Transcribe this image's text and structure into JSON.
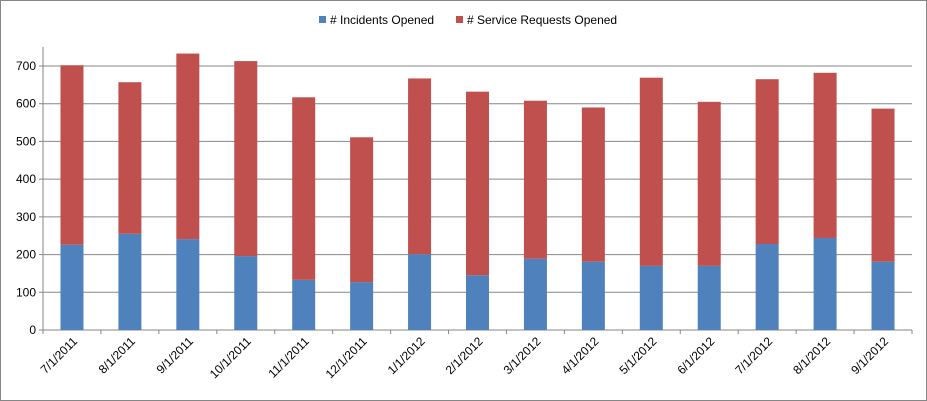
{
  "chart_data": {
    "type": "bar",
    "stacked": true,
    "categories": [
      "7/1/2011",
      "8/1/2011",
      "9/1/2011",
      "10/1/2011",
      "11/1/2011",
      "12/1/2011",
      "1/1/2012",
      "2/1/2012",
      "3/1/2012",
      "4/1/2012",
      "5/1/2012",
      "6/1/2012",
      "7/1/2012",
      "8/1/2012",
      "9/1/2012"
    ],
    "series": [
      {
        "name": "# Incidents Opened",
        "color": "#4F81BD",
        "values": [
          226,
          255,
          241,
          196,
          133,
          127,
          201,
          145,
          189,
          181,
          170,
          170,
          228,
          244,
          181
        ]
      },
      {
        "name": "# Service Requests Opened",
        "color": "#C0504D",
        "values": [
          476,
          402,
          492,
          517,
          484,
          384,
          466,
          487,
          419,
          409,
          499,
          435,
          437,
          438,
          406
        ]
      }
    ],
    "ylim": [
      0,
      700
    ],
    "yticks": [
      0,
      100,
      200,
      300,
      400,
      500,
      600,
      700
    ],
    "grid": true,
    "legend": "top-center",
    "title": "",
    "xlabel": "",
    "ylabel": ""
  }
}
